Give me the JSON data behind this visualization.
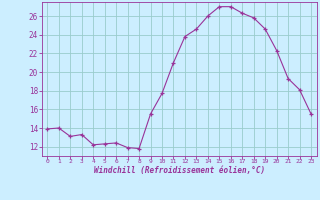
{
  "x": [
    0,
    1,
    2,
    3,
    4,
    5,
    6,
    7,
    8,
    9,
    10,
    11,
    12,
    13,
    14,
    15,
    16,
    17,
    18,
    19,
    20,
    21,
    22,
    23
  ],
  "y": [
    13.9,
    14.0,
    13.1,
    13.3,
    12.2,
    12.3,
    12.4,
    11.9,
    11.8,
    15.5,
    17.7,
    21.0,
    23.8,
    24.6,
    26.0,
    27.0,
    27.0,
    26.3,
    25.8,
    24.6,
    22.3,
    19.3,
    18.1,
    15.5
  ],
  "line_color": "#993399",
  "marker_color": "#993399",
  "bg_color": "#cceeff",
  "grid_color": "#99cccc",
  "xlabel": "Windchill (Refroidissement éolien,°C)",
  "ylabel": "",
  "xlim": [
    -0.5,
    23.5
  ],
  "ylim": [
    11.0,
    27.5
  ],
  "yticks": [
    12,
    14,
    16,
    18,
    20,
    22,
    24,
    26
  ],
  "xticks": [
    0,
    1,
    2,
    3,
    4,
    5,
    6,
    7,
    8,
    9,
    10,
    11,
    12,
    13,
    14,
    15,
    16,
    17,
    18,
    19,
    20,
    21,
    22,
    23
  ],
  "xlabel_color": "#993399",
  "tick_color": "#993399",
  "spine_color": "#993399",
  "figsize": [
    3.2,
    2.0
  ],
  "dpi": 100
}
